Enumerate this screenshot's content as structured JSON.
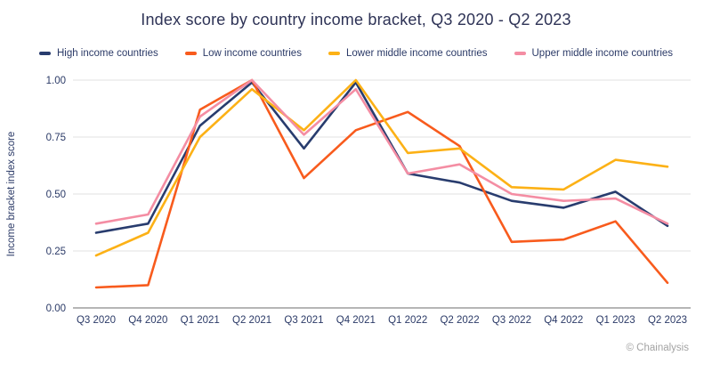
{
  "title": "Index score by country income bracket, Q3 2020 - Q2 2023",
  "attribution": "© Chainalysis",
  "chart_data": {
    "type": "line",
    "title": "Index score by country income bracket, Q3 2020 - Q2 2023",
    "xlabel": "",
    "ylabel": "Income bracket index score",
    "categories": [
      "Q3 2020",
      "Q4 2020",
      "Q1 2021",
      "Q2 2021",
      "Q3 2021",
      "Q4 2021",
      "Q1 2022",
      "Q2 2022",
      "Q3 2022",
      "Q4 2022",
      "Q1 2023",
      "Q2 2023"
    ],
    "series": [
      {
        "name": "High income countries",
        "color": "#283c6e",
        "values": [
          0.33,
          0.37,
          0.8,
          0.99,
          0.7,
          0.99,
          0.59,
          0.55,
          0.47,
          0.44,
          0.51,
          0.36
        ]
      },
      {
        "name": "Low income countries",
        "color": "#f85b1d",
        "values": [
          0.09,
          0.1,
          0.87,
          1.0,
          0.57,
          0.78,
          0.86,
          0.71,
          0.29,
          0.3,
          0.38,
          0.11
        ]
      },
      {
        "name": "Lower middle income countries",
        "color": "#fcb116",
        "values": [
          0.23,
          0.33,
          0.75,
          0.96,
          0.78,
          1.0,
          0.68,
          0.7,
          0.53,
          0.52,
          0.65,
          0.62
        ]
      },
      {
        "name": "Upper middle income countries",
        "color": "#f48da3",
        "values": [
          0.37,
          0.41,
          0.84,
          1.0,
          0.76,
          0.96,
          0.59,
          0.63,
          0.5,
          0.47,
          0.48,
          0.37
        ]
      }
    ],
    "ytick_labels": [
      "1.00",
      "0.75",
      "0.50",
      "0.25",
      "0.00"
    ],
    "ytick_values": [
      1.0,
      0.75,
      0.5,
      0.25,
      0.0
    ],
    "ylim": [
      0,
      1.0
    ],
    "grid": true,
    "legend_position": "top"
  },
  "colors": {
    "title_text": "#2e3356",
    "axis_text": "#2b3a67",
    "gridline": "#e2e2e2",
    "zero_line": "#8a8a8a",
    "attribution_text": "#a3a3a3",
    "background": "#ffffff"
  }
}
